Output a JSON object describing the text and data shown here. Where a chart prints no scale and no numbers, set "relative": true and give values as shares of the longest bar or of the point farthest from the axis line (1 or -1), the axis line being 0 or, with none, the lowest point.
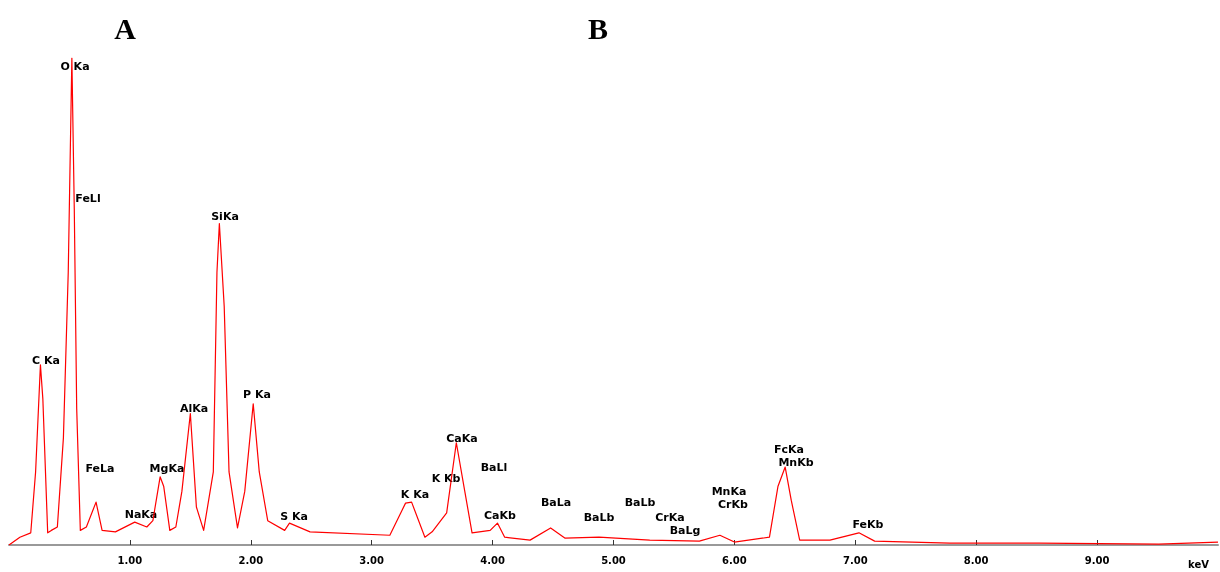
{
  "chart_data": {
    "type": "line",
    "relative": true,
    "xlabel": "keV",
    "color": "#ff0000",
    "marker": "none",
    "xlim": [
      0,
      10
    ],
    "xticks": [
      {
        "value": 1,
        "label": "1.00"
      },
      {
        "value": 2,
        "label": "2.00"
      },
      {
        "value": 3,
        "label": "3.00"
      },
      {
        "value": 4,
        "label": "4.00"
      },
      {
        "value": 5,
        "label": "5.00"
      },
      {
        "value": 6,
        "label": "6.00"
      },
      {
        "value": 7,
        "label": "7.00"
      },
      {
        "value": 8,
        "label": "8.00"
      },
      {
        "value": 9,
        "label": "9.00"
      }
    ],
    "x": [
      0,
      0.09,
      0.18,
      0.22,
      0.26,
      0.28,
      0.32,
      0.35,
      0.4,
      0.45,
      0.49,
      0.52,
      0.54,
      0.56,
      0.59,
      0.64,
      0.72,
      0.77,
      0.88,
      1.04,
      1.14,
      1.19,
      1.25,
      1.28,
      1.33,
      1.38,
      1.43,
      1.5,
      1.55,
      1.61,
      1.69,
      1.72,
      1.74,
      1.78,
      1.82,
      1.89,
      1.95,
      2.02,
      2.07,
      2.14,
      2.28,
      2.32,
      2.49,
      3.15,
      3.28,
      3.33,
      3.44,
      3.5,
      3.62,
      3.7,
      3.77,
      3.83,
      3.98,
      4.04,
      4.1,
      4.31,
      4.48,
      4.6,
      4.88,
      5.3,
      5.71,
      5.88,
      6.0,
      6.29,
      6.36,
      6.42,
      6.47,
      6.54,
      6.79,
      7.03,
      7.16,
      7.78,
      8.52,
      9.51,
      10.0
    ],
    "values": [
      0,
      0.016,
      0.025,
      0.15,
      0.37,
      0.3,
      0.025,
      0.03,
      0.037,
      0.22,
      0.56,
      1.0,
      0.69,
      0.28,
      0.03,
      0.037,
      0.088,
      0.03,
      0.027,
      0.047,
      0.037,
      0.05,
      0.14,
      0.12,
      0.03,
      0.037,
      0.11,
      0.27,
      0.078,
      0.03,
      0.15,
      0.56,
      0.66,
      0.49,
      0.15,
      0.035,
      0.11,
      0.29,
      0.15,
      0.05,
      0.03,
      0.045,
      0.027,
      0.02,
      0.086,
      0.088,
      0.016,
      0.027,
      0.066,
      0.21,
      0.11,
      0.025,
      0.03,
      0.045,
      0.016,
      0.01,
      0.035,
      0.014,
      0.016,
      0.01,
      0.008,
      0.02,
      0.006,
      0.016,
      0.12,
      0.16,
      0.092,
      0.01,
      0.01,
      0.025,
      0.008,
      0.004,
      0.004,
      0.002,
      0.006
    ],
    "annotations": [
      "A",
      "B",
      "O Ka",
      "FeLl",
      "C Ka",
      "FeLa",
      "NaKa",
      "MgKa",
      "AlKa",
      "SiKa",
      "P Ka",
      "S Ka",
      "K Ka",
      "K Kb",
      "CaKa",
      "BaLl",
      "CaKb",
      "BaLa",
      "BaLb",
      "BaLb",
      "CrKa",
      "BaLg",
      "MnKa",
      "CrKb",
      "FcKa",
      "MnKb",
      "FeKb"
    ]
  }
}
